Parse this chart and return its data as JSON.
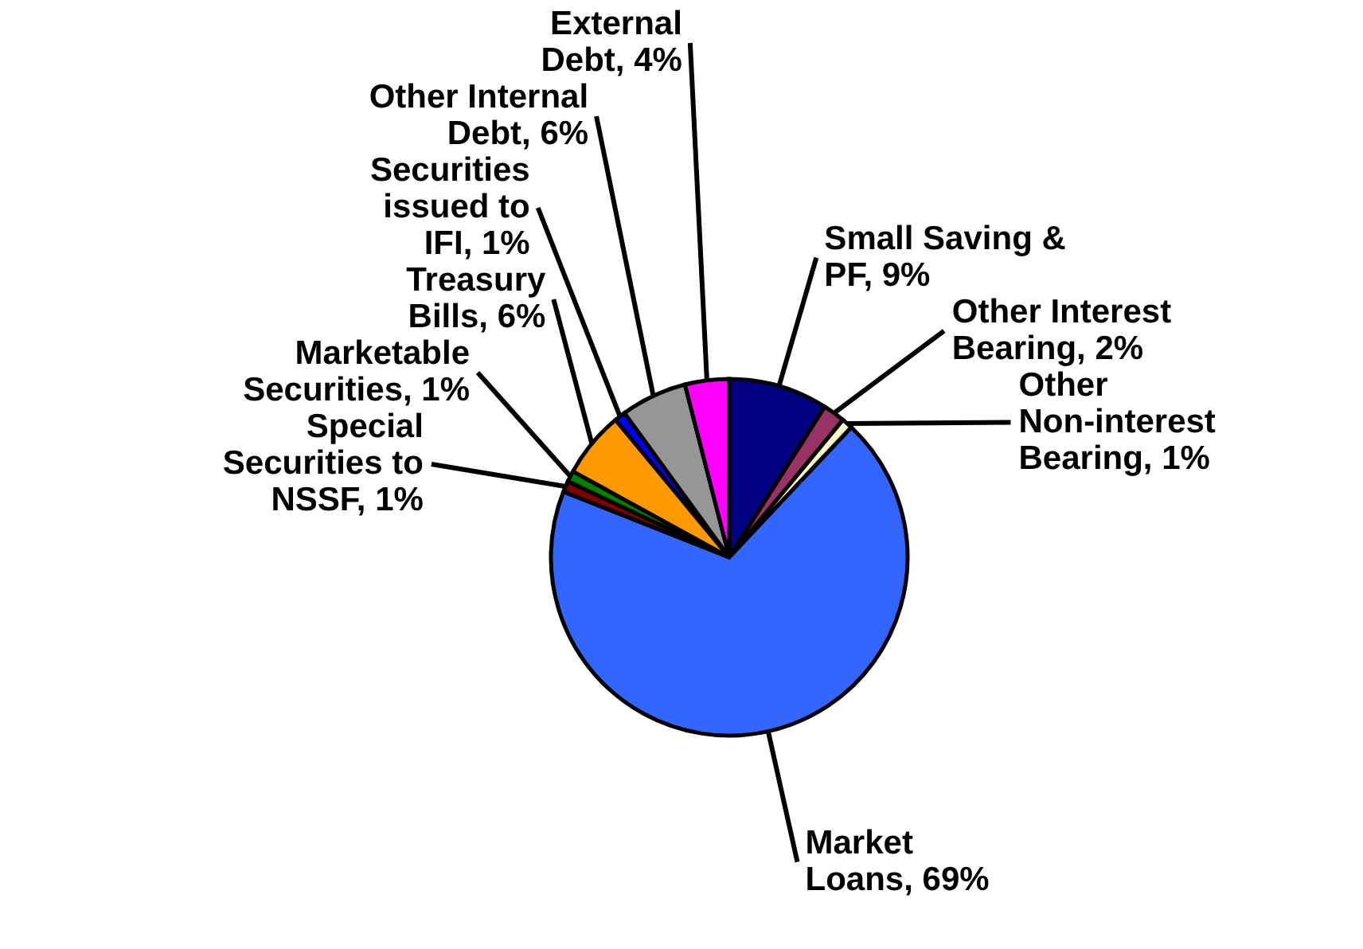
{
  "chart_data": {
    "type": "pie",
    "categories": [
      "Small Saving & PF",
      "Other Interest Bearing",
      "Other Non-interest Bearing",
      "Market Loans",
      "Special Securities to NSSF",
      "Marketable Securities",
      "Treasury Bills",
      "Securities issued to IFI",
      "Other Internal Debt",
      "External Debt"
    ],
    "values": [
      9,
      2,
      1,
      69,
      1,
      1,
      6,
      1,
      6,
      4
    ],
    "value_labels": [
      "9%",
      "2%",
      "1%",
      "69%",
      "1%",
      "1%",
      "6%",
      "1%",
      "6%",
      "4%"
    ],
    "colors": [
      "#000080",
      "#993366",
      "#ffffcc",
      "#3366ff",
      "#800000",
      "#008000",
      "#ff9900",
      "#0000ff",
      "#969696",
      "#ff00ff"
    ]
  }
}
